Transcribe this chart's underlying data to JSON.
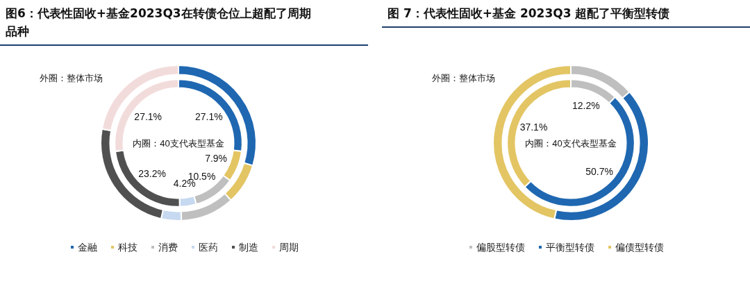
{
  "chart_data": [
    {
      "type": "donut",
      "title": "图6：代表性固收+基金2023Q3在转债仓位上超配了周期品种",
      "categories": [
        "金融",
        "科技",
        "消费",
        "医药",
        "制造",
        "周期"
      ],
      "legend": "bottom",
      "annotations": [
        "外圈：整体市场",
        "内圈：40支代表型基金"
      ],
      "series": [
        {
          "values": [
            29.7,
            8.5,
            11.2,
            4.2,
            24.3,
            22.1
          ],
          "colors": [
            "#1f67b1",
            "#e3c564",
            "#bfbfbf",
            "#c6d9f0",
            "#505050",
            "#f2dcdb"
          ]
        },
        {
          "values": [
            27.1,
            7.9,
            10.5,
            4.2,
            23.2,
            27.1
          ],
          "value_labels": [
            "27.1%",
            "7.9%",
            "10.5%",
            "4.2%",
            "23.2%",
            "27.1%"
          ],
          "colors": [
            "#1f67b1",
            "#e3c564",
            "#bfbfbf",
            "#c6d9f0",
            "#505050",
            "#f2dcdb"
          ]
        }
      ]
    },
    {
      "type": "donut",
      "title": "图 7：代表性固收+基金 2023Q3 超配了平衡型转债",
      "categories": [
        "偏股型转债",
        "平衡型转债",
        "偏债型转债"
      ],
      "legend": "bottom",
      "annotations": [
        "外圈：整体市场",
        "内圈：40支代表型基金"
      ],
      "series": [
        {
          "values": [
            13.6,
            39.8,
            46.6
          ],
          "colors": [
            "#bfbfbf",
            "#1f67b1",
            "#e3c564"
          ]
        },
        {
          "values": [
            12.2,
            50.7,
            37.1
          ],
          "value_labels": [
            "12.2%",
            "50.7%",
            "37.1%"
          ],
          "colors": [
            "#bfbfbf",
            "#1f67b1",
            "#e3c564"
          ]
        }
      ]
    }
  ]
}
